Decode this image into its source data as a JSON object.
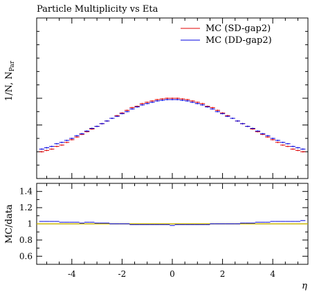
{
  "chart_data": {
    "title": "Particle Multiplicity vs Eta",
    "type": "scatter",
    "main_panel": {
      "ylabel": "1/N, N_Par",
      "ylabel_main": "1/N, N",
      "ylabel_sub": "Par",
      "ylim": [
        0,
        1.2
      ],
      "yticks_labeled": false
    },
    "ratio_panel": {
      "ylabel": "MC/data",
      "ylim": [
        0.5,
        1.5
      ],
      "yticks": [
        "0.6",
        "0.8",
        "1",
        "1.2",
        "1.4"
      ],
      "reference_line": 1.0,
      "reference_color": "#c8b400"
    },
    "xlabel": "η",
    "xlim": [
      -5.4,
      5.4
    ],
    "xticks": [
      "-4",
      "-2",
      "0",
      "2",
      "4"
    ],
    "legend_position": "top-right",
    "series": [
      {
        "name": "MC (SD-gap2)",
        "color": "#e00000",
        "x": [
          -5.2,
          -5.0,
          -4.8,
          -4.6,
          -4.4,
          -4.2,
          -4.0,
          -3.8,
          -3.6,
          -3.4,
          -3.2,
          -3.0,
          -2.8,
          -2.6,
          -2.4,
          -2.2,
          -2.0,
          -1.8,
          -1.6,
          -1.4,
          -1.2,
          -1.0,
          -0.8,
          -0.6,
          -0.4,
          -0.2,
          0.0,
          0.2,
          0.4,
          0.6,
          0.8,
          1.0,
          1.2,
          1.4,
          1.6,
          1.8,
          2.0,
          2.2,
          2.4,
          2.6,
          2.8,
          3.0,
          3.2,
          3.4,
          3.6,
          3.8,
          4.0,
          4.2,
          4.4,
          4.6,
          4.8,
          5.0,
          5.2
        ],
        "y": [
          0.2,
          0.21,
          0.22,
          0.24,
          0.25,
          0.27,
          0.29,
          0.31,
          0.33,
          0.35,
          0.37,
          0.39,
          0.41,
          0.43,
          0.45,
          0.47,
          0.49,
          0.51,
          0.53,
          0.54,
          0.56,
          0.57,
          0.58,
          0.59,
          0.595,
          0.6,
          0.6,
          0.6,
          0.595,
          0.59,
          0.58,
          0.57,
          0.56,
          0.54,
          0.53,
          0.51,
          0.49,
          0.47,
          0.45,
          0.43,
          0.41,
          0.39,
          0.37,
          0.35,
          0.33,
          0.31,
          0.29,
          0.27,
          0.25,
          0.24,
          0.22,
          0.21,
          0.2
        ],
        "ratio": [
          1.0,
          1.0,
          1.0,
          1.0,
          1.0,
          1.0,
          1.0,
          1.0,
          1.0,
          1.0,
          1.0,
          1.0,
          1.0,
          1.0,
          1.0,
          1.0,
          1.0,
          1.0,
          1.0,
          1.0,
          1.0,
          1.0,
          1.0,
          1.0,
          1.0,
          1.0,
          1.0,
          1.0,
          1.0,
          1.0,
          1.0,
          1.0,
          1.0,
          1.0,
          1.0,
          1.0,
          1.0,
          1.0,
          1.0,
          1.0,
          1.0,
          1.0,
          1.0,
          1.0,
          1.0,
          1.0,
          1.0,
          1.0,
          1.0,
          1.0,
          1.0,
          1.0,
          1.0
        ]
      },
      {
        "name": "MC (DD-gap2)",
        "color": "#0000e0",
        "x": [
          -5.2,
          -5.0,
          -4.8,
          -4.6,
          -4.4,
          -4.2,
          -4.0,
          -3.8,
          -3.6,
          -3.4,
          -3.2,
          -3.0,
          -2.8,
          -2.6,
          -2.4,
          -2.2,
          -2.0,
          -1.8,
          -1.6,
          -1.4,
          -1.2,
          -1.0,
          -0.8,
          -0.6,
          -0.4,
          -0.2,
          0.0,
          0.2,
          0.4,
          0.6,
          0.8,
          1.0,
          1.2,
          1.4,
          1.6,
          1.8,
          2.0,
          2.2,
          2.4,
          2.6,
          2.8,
          3.0,
          3.2,
          3.4,
          3.6,
          3.8,
          4.0,
          4.2,
          4.4,
          4.6,
          4.8,
          5.0,
          5.2
        ],
        "y": [
          0.22,
          0.23,
          0.24,
          0.26,
          0.27,
          0.285,
          0.3,
          0.32,
          0.335,
          0.355,
          0.375,
          0.39,
          0.41,
          0.43,
          0.45,
          0.465,
          0.485,
          0.5,
          0.52,
          0.535,
          0.55,
          0.56,
          0.57,
          0.58,
          0.585,
          0.59,
          0.59,
          0.59,
          0.585,
          0.58,
          0.57,
          0.56,
          0.55,
          0.535,
          0.52,
          0.5,
          0.485,
          0.465,
          0.45,
          0.43,
          0.41,
          0.39,
          0.375,
          0.355,
          0.335,
          0.32,
          0.3,
          0.285,
          0.27,
          0.26,
          0.24,
          0.23,
          0.22
        ],
        "ratio": [
          1.03,
          1.03,
          1.03,
          1.03,
          1.02,
          1.02,
          1.02,
          1.02,
          1.01,
          1.02,
          1.02,
          1.01,
          1.01,
          1.01,
          1.0,
          1.0,
          1.0,
          1.0,
          0.99,
          0.99,
          0.99,
          0.99,
          0.99,
          0.99,
          0.99,
          0.99,
          0.98,
          0.99,
          0.99,
          0.99,
          0.99,
          0.99,
          0.99,
          0.99,
          1.0,
          1.0,
          1.0,
          1.0,
          1.0,
          1.0,
          1.01,
          1.01,
          1.01,
          1.02,
          1.02,
          1.02,
          1.03,
          1.03,
          1.03,
          1.03,
          1.03,
          1.03,
          1.04
        ]
      }
    ]
  }
}
